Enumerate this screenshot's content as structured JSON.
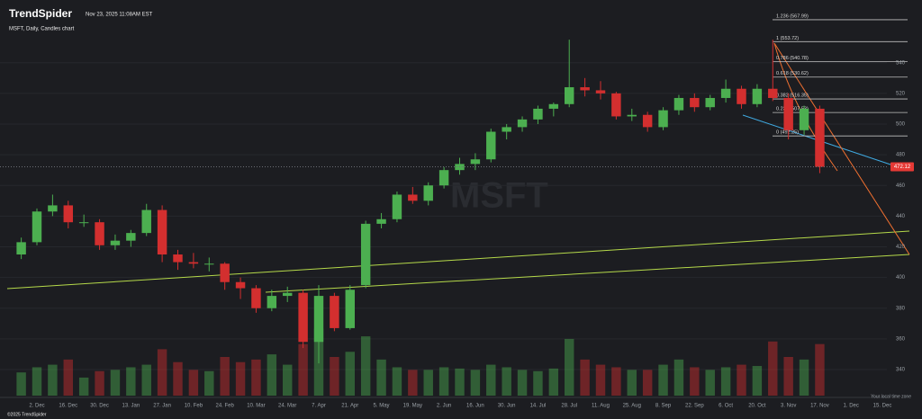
{
  "header": {
    "brand": "TrendSpider",
    "timestamp": "Nov 23, 2025 11:08AM EST"
  },
  "footer": {
    "copyright": "©2025 TrendSpider",
    "timezone": "Your local time zone"
  },
  "chart_data": {
    "type": "candlestick",
    "title": "MSFT, Daily, Candles chart",
    "watermark": "MSFT",
    "categories": [
      null,
      "2. Dec",
      null,
      "16. Dec",
      null,
      "30. Dec",
      null,
      "13. Jan",
      null,
      "27. Jan",
      null,
      "10. Feb",
      null,
      "24. Feb",
      null,
      "10. Mar",
      null,
      "24. Mar",
      null,
      "7. Apr",
      null,
      "21. Apr",
      null,
      "5. May",
      null,
      "19. May",
      null,
      "2. Jun",
      null,
      "16. Jun",
      null,
      "30. Jun",
      null,
      "14. Jul",
      null,
      "28. Jul",
      null,
      "11. Aug",
      null,
      "25. Aug",
      null,
      "8. Sep",
      null,
      "22. Sep",
      null,
      "6. Oct",
      null,
      "20. Oct",
      null,
      "3. Nov",
      null,
      "17. Nov",
      null,
      "1. Dec",
      null,
      "15. Dec"
    ],
    "open": [
      415,
      423,
      443,
      447,
      436,
      436,
      421,
      424,
      429,
      444,
      415,
      410,
      409,
      409,
      397,
      393,
      380,
      388,
      390,
      358,
      388,
      367,
      395,
      435,
      438,
      454,
      450,
      460,
      470,
      474,
      477,
      495,
      498,
      503,
      510,
      513,
      524,
      522,
      520,
      505,
      506,
      498,
      509,
      517,
      511,
      517,
      523,
      513,
      523,
      517,
      496,
      510,
      null,
      null,
      null,
      null
    ],
    "high": [
      426,
      445,
      454,
      450,
      441,
      438,
      428,
      431,
      448,
      447,
      418,
      416,
      413,
      410,
      400,
      395,
      392,
      394,
      392,
      395,
      390,
      395,
      437,
      442,
      456,
      459,
      462,
      472,
      478,
      481,
      497,
      500,
      505,
      512,
      514,
      555,
      530,
      528,
      521,
      510,
      508,
      511,
      519,
      520,
      519,
      529,
      525,
      526,
      555,
      520,
      512,
      512,
      null,
      null,
      null,
      null
    ],
    "low": [
      412,
      421,
      440,
      432,
      433,
      418,
      418,
      420,
      427,
      410,
      405,
      406,
      404,
      392,
      386,
      377,
      378,
      384,
      354,
      344,
      365,
      366,
      393,
      432,
      436,
      448,
      447,
      458,
      467,
      470,
      475,
      490,
      495,
      500,
      505,
      511,
      518,
      516,
      503,
      502,
      495,
      496,
      506,
      508,
      509,
      514,
      510,
      511,
      515,
      490,
      493,
      468,
      null,
      null,
      null,
      null
    ],
    "close": [
      423,
      443,
      447,
      436,
      436,
      421,
      424,
      429,
      444,
      415,
      410,
      409,
      409,
      397,
      393,
      380,
      388,
      390,
      358,
      388,
      367,
      392,
      435,
      438,
      454,
      450,
      460,
      470,
      474,
      477,
      495,
      498,
      503,
      510,
      513,
      524,
      522,
      520,
      505,
      506,
      498,
      509,
      517,
      511,
      517,
      523,
      513,
      523,
      517,
      496,
      510,
      472.12,
      null,
      null,
      null,
      null
    ],
    "volume": [
      90,
      110,
      120,
      140,
      70,
      95,
      100,
      110,
      120,
      180,
      130,
      100,
      95,
      150,
      130,
      140,
      160,
      120,
      200,
      260,
      150,
      170,
      230,
      140,
      110,
      100,
      100,
      110,
      105,
      100,
      120,
      110,
      100,
      95,
      105,
      220,
      140,
      120,
      110,
      100,
      100,
      120,
      140,
      110,
      100,
      110,
      120,
      115,
      210,
      150,
      140,
      200,
      null,
      null,
      null,
      null
    ],
    "up_color": "#4caf50",
    "down_color": "#d32f2f",
    "ylim": [
      323,
      575
    ],
    "yticks": [
      340,
      360,
      380,
      400,
      420,
      440,
      460,
      480,
      500,
      520,
      540
    ],
    "y2lim": [
      0,
      1500
    ],
    "grid": true,
    "fib_levels": [
      {
        "label": "1.236 (567.99)",
        "value": 567.99
      },
      {
        "label": "1 (553.72)",
        "value": 553.72
      },
      {
        "label": "0.786 (540.78)",
        "value": 540.78
      },
      {
        "label": "0.618 (530.62)",
        "value": 530.62
      },
      {
        "label": "0.382 (516.35)",
        "value": 516.35
      },
      {
        "label": "0.236 (507.53)",
        "value": 507.53
      },
      {
        "label": "0 (492.25)",
        "value": 492.25
      }
    ]
  }
}
